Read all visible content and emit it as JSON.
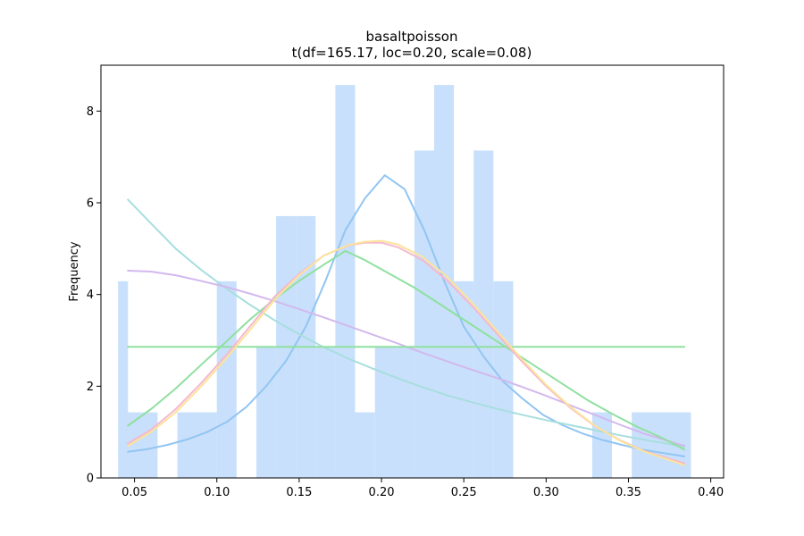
{
  "chart_data": {
    "type": "bar",
    "title": "basaltpoisson",
    "subtitle": "t(df=165.17, loc=0.20, scale=0.08)",
    "xlabel": "",
    "ylabel": "Frequency",
    "xlim": [
      0.0296,
      0.4078
    ],
    "ylim": [
      0,
      9.0
    ],
    "grid": false,
    "legend": "none",
    "x_ticks": [
      {
        "value": 0.05,
        "label": "0.05"
      },
      {
        "value": 0.1,
        "label": "0.10"
      },
      {
        "value": 0.15,
        "label": "0.15"
      },
      {
        "value": 0.2,
        "label": "0.20"
      },
      {
        "value": 0.25,
        "label": "0.25"
      },
      {
        "value": 0.3,
        "label": "0.30"
      },
      {
        "value": 0.35,
        "label": "0.35"
      },
      {
        "value": 0.4,
        "label": "0.40"
      }
    ],
    "y_ticks": [
      {
        "value": 0,
        "label": "0"
      },
      {
        "value": 2,
        "label": "2"
      },
      {
        "value": 4,
        "label": "4"
      },
      {
        "value": 6,
        "label": "6"
      },
      {
        "value": 8,
        "label": "8"
      }
    ],
    "histogram": {
      "color": "#c8e0fb",
      "bins": [
        {
          "x0": 0.04,
          "x1": 0.046,
          "value": 4.29
        },
        {
          "x0": 0.046,
          "x1": 0.064,
          "value": 1.43
        },
        {
          "x0": 0.076,
          "x1": 0.1,
          "value": 1.43
        },
        {
          "x0": 0.1,
          "x1": 0.112,
          "value": 4.29
        },
        {
          "x0": 0.124,
          "x1": 0.136,
          "value": 2.86
        },
        {
          "x0": 0.136,
          "x1": 0.148,
          "value": 5.71
        },
        {
          "x0": 0.148,
          "x1": 0.16,
          "value": 5.71
        },
        {
          "x0": 0.16,
          "x1": 0.172,
          "value": 2.86
        },
        {
          "x0": 0.172,
          "x1": 0.184,
          "value": 8.57
        },
        {
          "x0": 0.184,
          "x1": 0.196,
          "value": 1.43
        },
        {
          "x0": 0.196,
          "x1": 0.22,
          "value": 2.86
        },
        {
          "x0": 0.22,
          "x1": 0.232,
          "value": 7.14
        },
        {
          "x0": 0.232,
          "x1": 0.244,
          "value": 8.57
        },
        {
          "x0": 0.244,
          "x1": 0.256,
          "value": 4.29
        },
        {
          "x0": 0.256,
          "x1": 0.268,
          "value": 7.14
        },
        {
          "x0": 0.268,
          "x1": 0.28,
          "value": 4.29
        },
        {
          "x0": 0.328,
          "x1": 0.34,
          "value": 1.43
        },
        {
          "x0": 0.352,
          "x1": 0.388,
          "value": 1.43
        }
      ]
    },
    "series": [
      {
        "color": "#92c5f2",
        "x": [
          0.046,
          0.058,
          0.07,
          0.082,
          0.094,
          0.106,
          0.118,
          0.13,
          0.142,
          0.154,
          0.166,
          0.178,
          0.19,
          0.202,
          0.214,
          0.226,
          0.238,
          0.25,
          0.262,
          0.274,
          0.286,
          0.298,
          0.31,
          0.322,
          0.334,
          0.346,
          0.358,
          0.37,
          0.384
        ],
        "y": [
          0.57,
          0.63,
          0.72,
          0.84,
          1.0,
          1.22,
          1.55,
          2.0,
          2.55,
          3.3,
          4.3,
          5.4,
          6.1,
          6.6,
          6.3,
          5.4,
          4.3,
          3.3,
          2.65,
          2.1,
          1.72,
          1.38,
          1.15,
          0.97,
          0.83,
          0.72,
          0.62,
          0.55,
          0.47
        ]
      },
      {
        "color": "#a8dede",
        "x": [
          0.046,
          0.06,
          0.075,
          0.09,
          0.105,
          0.12,
          0.135,
          0.15,
          0.165,
          0.18,
          0.195,
          0.21,
          0.225,
          0.24,
          0.255,
          0.27,
          0.285,
          0.3,
          0.315,
          0.33,
          0.345,
          0.36,
          0.384
        ],
        "y": [
          6.07,
          5.55,
          5.0,
          4.55,
          4.15,
          3.78,
          3.44,
          3.13,
          2.85,
          2.6,
          2.38,
          2.17,
          1.98,
          1.8,
          1.65,
          1.51,
          1.38,
          1.26,
          1.15,
          1.04,
          0.93,
          0.83,
          0.68
        ]
      },
      {
        "color": "#d3b8ee",
        "x": [
          0.046,
          0.06,
          0.075,
          0.09,
          0.105,
          0.12,
          0.135,
          0.15,
          0.165,
          0.18,
          0.195,
          0.21,
          0.225,
          0.24,
          0.255,
          0.27,
          0.285,
          0.3,
          0.315,
          0.33,
          0.345,
          0.36,
          0.384
        ],
        "y": [
          4.52,
          4.5,
          4.42,
          4.3,
          4.17,
          4.02,
          3.86,
          3.68,
          3.5,
          3.31,
          3.12,
          2.93,
          2.73,
          2.54,
          2.36,
          2.18,
          1.99,
          1.79,
          1.58,
          1.37,
          1.16,
          0.96,
          0.7
        ]
      },
      {
        "color": "#8fe0a0",
        "x": [
          0.046,
          0.06,
          0.075,
          0.09,
          0.105,
          0.12,
          0.135,
          0.15,
          0.165,
          0.178,
          0.19,
          0.205,
          0.22,
          0.235,
          0.25,
          0.265,
          0.28,
          0.295,
          0.31,
          0.325,
          0.34,
          0.355,
          0.37,
          0.384
        ],
        "y": [
          1.14,
          1.5,
          1.95,
          2.45,
          2.95,
          3.45,
          3.9,
          4.3,
          4.65,
          4.95,
          4.75,
          4.45,
          4.15,
          3.8,
          3.45,
          3.1,
          2.75,
          2.4,
          2.05,
          1.7,
          1.4,
          1.12,
          0.88,
          0.62
        ]
      },
      {
        "color": "#8fe0a0",
        "x": [
          0.046,
          0.384
        ],
        "y": [
          2.86,
          2.86
        ]
      },
      {
        "color": "#f5b8d0",
        "x": [
          0.046,
          0.06,
          0.075,
          0.09,
          0.105,
          0.12,
          0.135,
          0.15,
          0.165,
          0.18,
          0.19,
          0.2,
          0.21,
          0.225,
          0.24,
          0.255,
          0.27,
          0.285,
          0.3,
          0.315,
          0.33,
          0.345,
          0.36,
          0.384
        ],
        "y": [
          0.75,
          1.05,
          1.5,
          2.05,
          2.65,
          3.3,
          3.95,
          4.45,
          4.85,
          5.07,
          5.13,
          5.13,
          5.03,
          4.75,
          4.3,
          3.75,
          3.15,
          2.55,
          2.0,
          1.52,
          1.12,
          0.82,
          0.58,
          0.32
        ]
      },
      {
        "color": "#fce39a",
        "x": [
          0.046,
          0.06,
          0.075,
          0.09,
          0.105,
          0.12,
          0.135,
          0.15,
          0.165,
          0.18,
          0.19,
          0.2,
          0.21,
          0.225,
          0.24,
          0.255,
          0.27,
          0.285,
          0.3,
          0.315,
          0.33,
          0.345,
          0.36,
          0.384
        ],
        "y": [
          0.7,
          1.0,
          1.43,
          1.98,
          2.58,
          3.22,
          3.88,
          4.42,
          4.85,
          5.08,
          5.15,
          5.17,
          5.09,
          4.82,
          4.38,
          3.82,
          3.21,
          2.6,
          2.03,
          1.54,
          1.13,
          0.81,
          0.57,
          0.28
        ]
      }
    ]
  }
}
